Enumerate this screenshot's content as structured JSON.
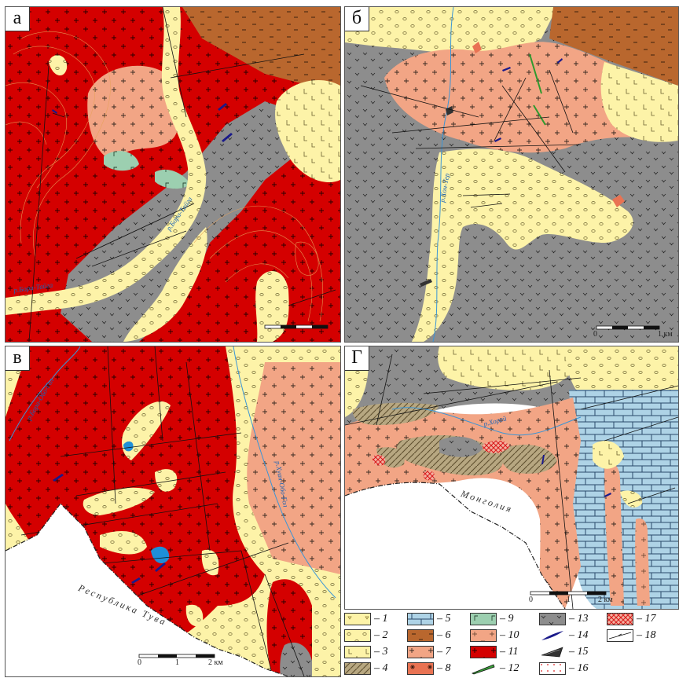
{
  "panels": [
    {
      "id": "a",
      "label": "а"
    },
    {
      "id": "b",
      "label": "б"
    },
    {
      "id": "v",
      "label": "в"
    },
    {
      "id": "g",
      "label": "Г"
    }
  ],
  "rivers": {
    "a_left": "р.Бора-Тайга",
    "a_right": "р.Бора-Тайга",
    "b_main": "р.Хон-Тер",
    "v_left": "р.Бора-Обо-Гол",
    "v_right": "р.Хуан-Обо-Гол",
    "g_main": "р.Хорей"
  },
  "regions": {
    "tuva": "Республика Тува",
    "mongolia": "Монголия"
  },
  "scale_bars": {
    "b": {
      "start": "0",
      "end": "1 км"
    },
    "v": {
      "start": "0",
      "mid": "1",
      "end": "2 км"
    },
    "g": {
      "start": "0",
      "mid": "1",
      "end": "2 км"
    }
  },
  "legend": [
    {
      "num": "1",
      "text": "– 1",
      "symbol": "pattern-triangles",
      "color": "#fdf3a8"
    },
    {
      "num": "2",
      "text": "– 2",
      "symbol": "pattern-ovals",
      "color": "#fdf3a8"
    },
    {
      "num": "3",
      "text": "– 3",
      "symbol": "pattern-L",
      "color": "#fdf3a8"
    },
    {
      "num": "4",
      "text": "– 4",
      "symbol": "pattern-hatch",
      "color": "#9b8a6a"
    },
    {
      "num": "5",
      "text": "– 5",
      "symbol": "pattern-bricks",
      "color": "#aed3e6"
    },
    {
      "num": "6",
      "text": "– 6",
      "symbol": "pattern-dark-dash",
      "color": "#b5602a"
    },
    {
      "num": "7",
      "text": "– 7",
      "symbol": "pattern-plus",
      "color": "#f2a585"
    },
    {
      "num": "8",
      "text": "– 8",
      "symbol": "pattern-asterisk",
      "color": "#e97353"
    },
    {
      "num": "9",
      "text": "– 9",
      "symbol": "pattern-gamma",
      "color": "#9ccfb0"
    },
    {
      "num": "10",
      "text": "– 10",
      "symbol": "pattern-dashplus",
      "color": "#f2a585"
    },
    {
      "num": "11",
      "text": "– 11",
      "symbol": "pattern-plus-red",
      "color": "#d40000"
    },
    {
      "num": "12",
      "text": "– 12",
      "symbol": "green-lens",
      "color": "#3aa13a"
    },
    {
      "num": "13",
      "text": "– 13",
      "symbol": "pattern-checks",
      "color": "#8d8d8d"
    },
    {
      "num": "14",
      "text": "– 14",
      "symbol": "blue-lens",
      "color": "#1a1a8a"
    },
    {
      "num": "15",
      "text": "– 15",
      "symbol": "black-wedge",
      "color": "#333333"
    },
    {
      "num": "16",
      "text": "– 16",
      "symbol": "red-dots",
      "color": "#e02020"
    },
    {
      "num": "17",
      "text": "– 17",
      "symbol": "red-crosshatch",
      "color": "#e02020"
    },
    {
      "num": "18",
      "text": "– 18",
      "symbol": "fault-line",
      "color": "#111111"
    }
  ]
}
